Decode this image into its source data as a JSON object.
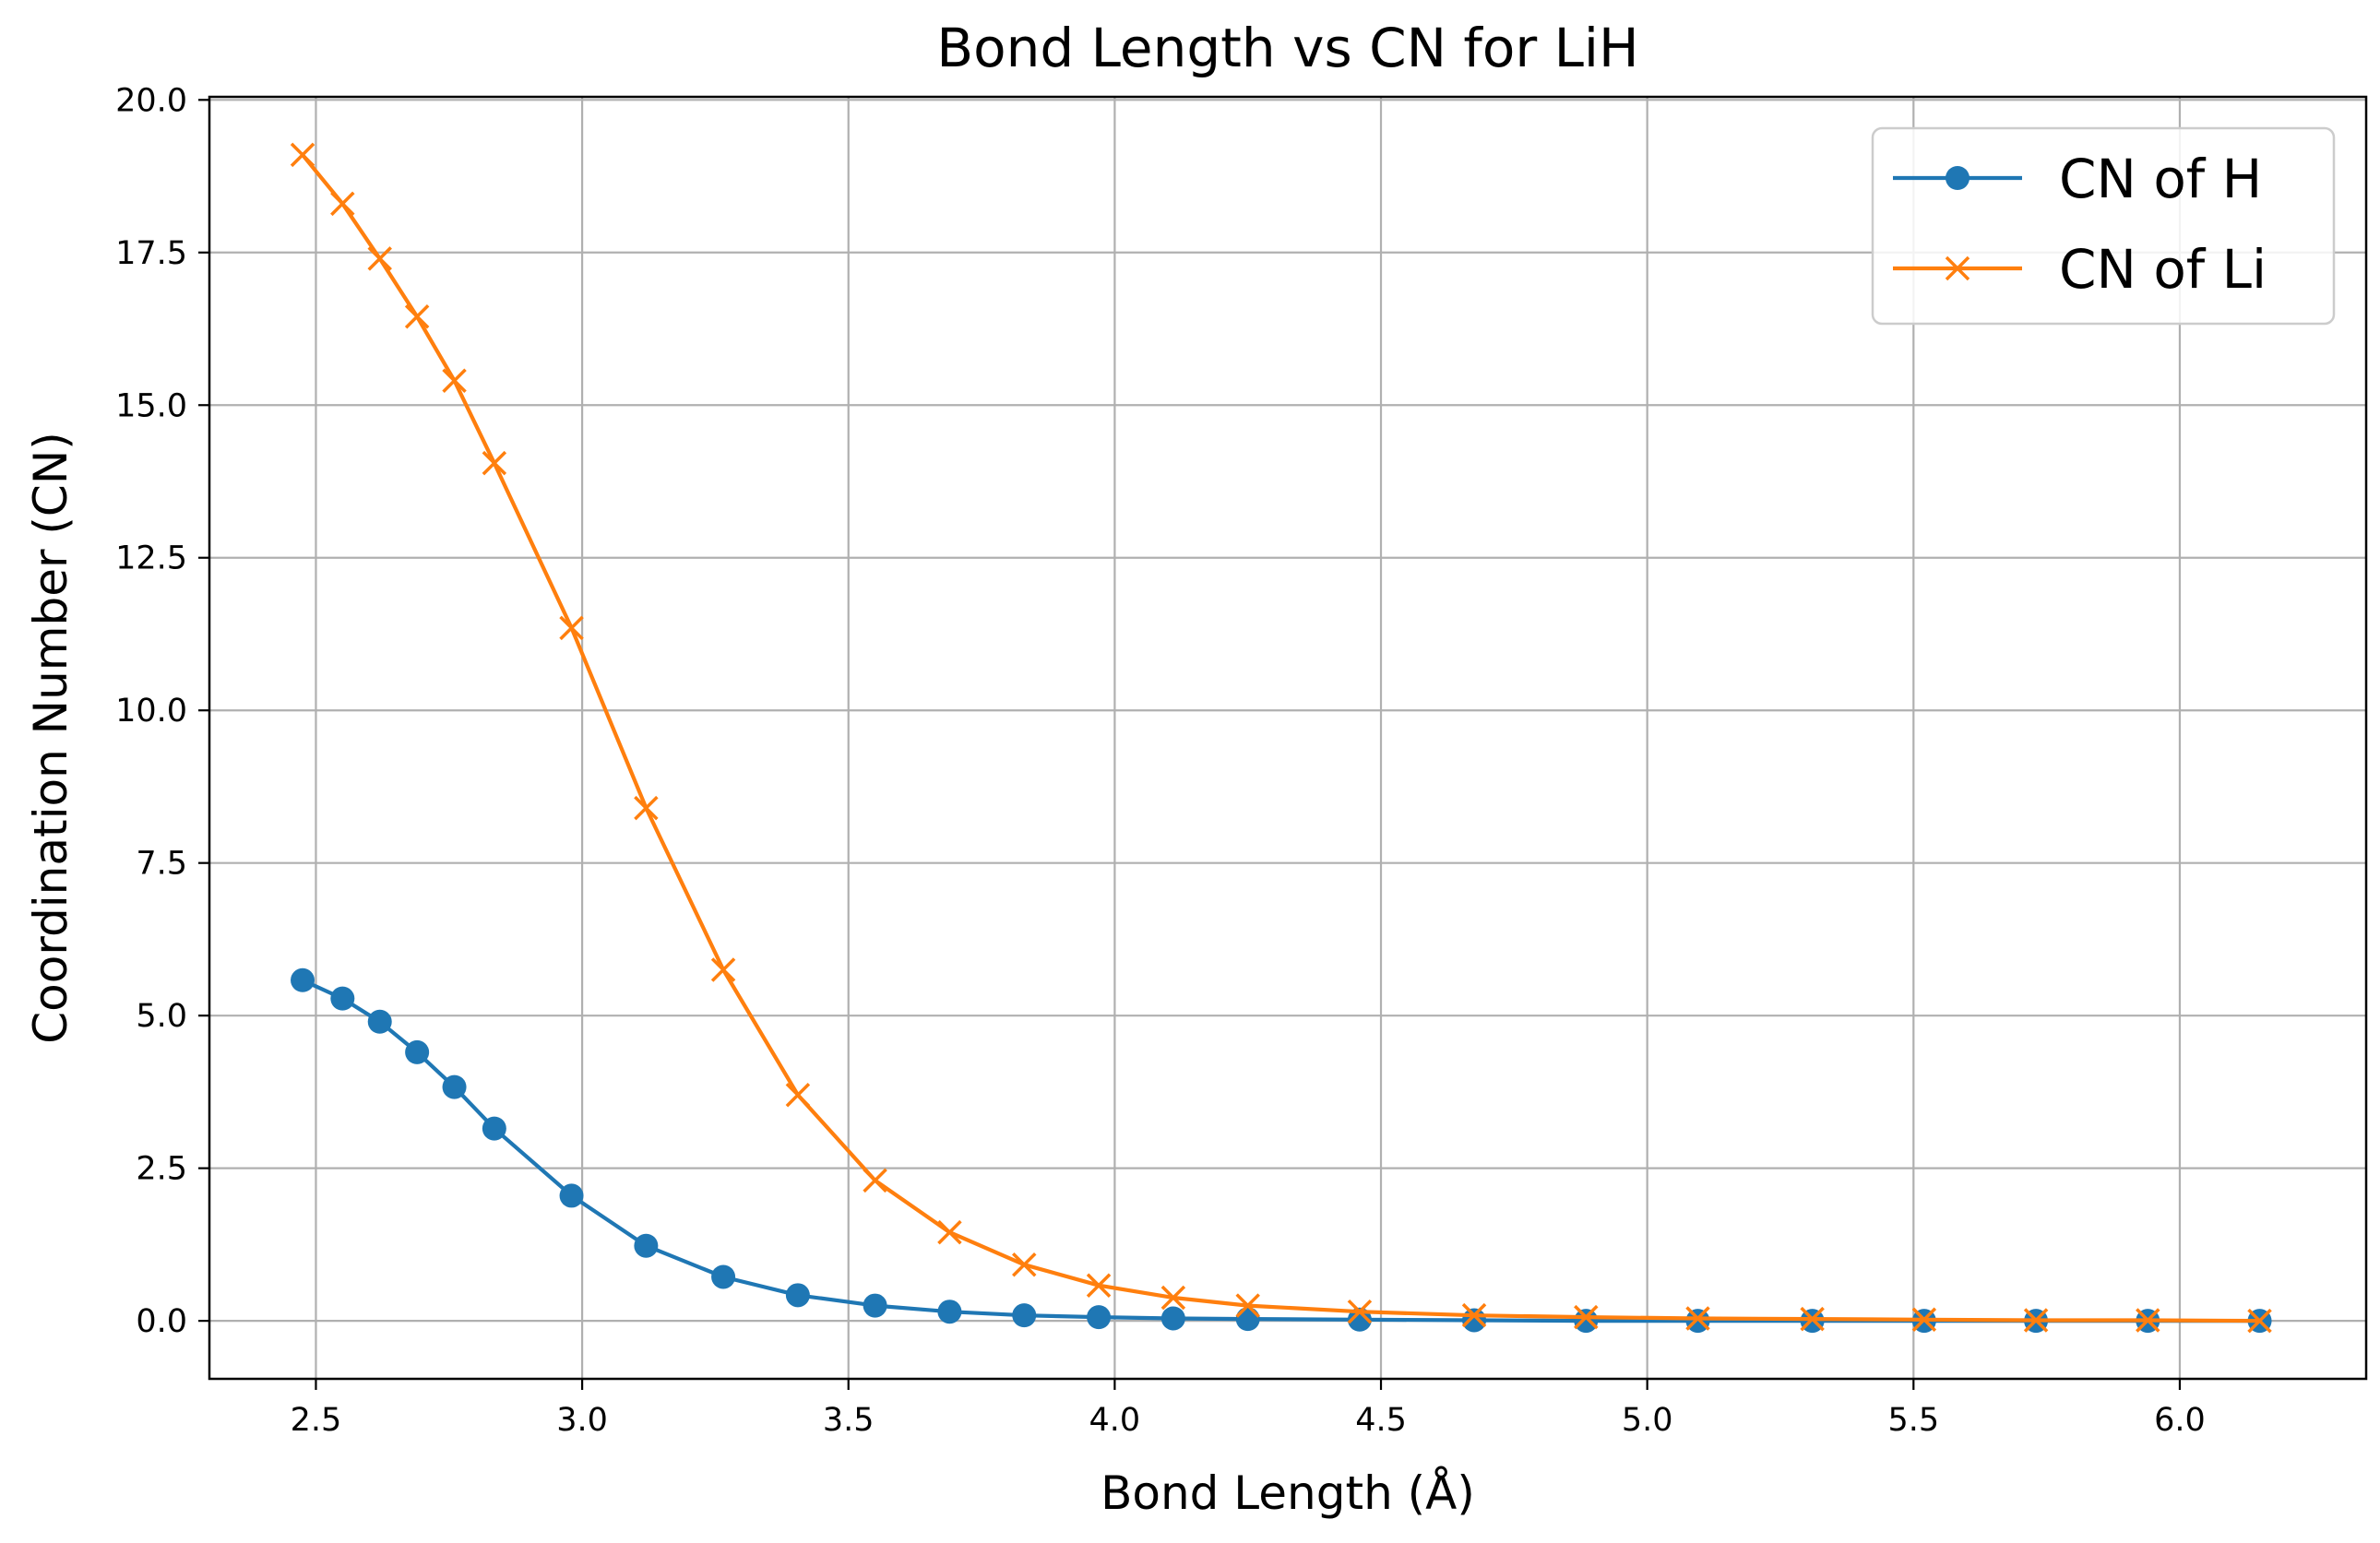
{
  "chart_data": {
    "type": "line",
    "title": "Bond Length vs CN for LiH",
    "xlabel": "Bond Length (Å)",
    "ylabel": "Coordination Number (CN)",
    "xlim": [
      2.3,
      6.35
    ],
    "ylim": [
      -0.95,
      20.05
    ],
    "xticks": [
      "2.5",
      "3.0",
      "3.5",
      "4.0",
      "4.5",
      "5.0",
      "5.5",
      "6.0"
    ],
    "yticks": [
      "0.0",
      "2.5",
      "5.0",
      "7.5",
      "10.0",
      "12.5",
      "15.0",
      "17.5",
      "20.0"
    ],
    "grid": true,
    "legend_position": "top-right",
    "x": [
      2.475,
      2.55,
      2.62,
      2.69,
      2.76,
      2.835,
      2.98,
      3.12,
      3.265,
      3.405,
      3.55,
      3.69,
      3.83,
      3.97,
      4.11,
      4.25,
      4.46,
      4.675,
      4.885,
      5.095,
      5.31,
      5.52,
      5.73,
      5.94,
      6.15
    ],
    "series": [
      {
        "name": "CN of H",
        "color": "#1f77b4",
        "marker": "circle",
        "values": [
          5.58,
          5.28,
          4.9,
          4.4,
          3.83,
          3.15,
          2.05,
          1.23,
          0.72,
          0.42,
          0.25,
          0.15,
          0.09,
          0.06,
          0.04,
          0.03,
          0.02,
          0.01,
          0.0,
          0.0,
          0.0,
          0.0,
          0.0,
          0.0,
          0.0
        ]
      },
      {
        "name": "CN of Li",
        "color": "#ff7f0e",
        "marker": "x",
        "values": [
          19.1,
          18.3,
          17.4,
          16.45,
          15.4,
          14.05,
          11.35,
          8.4,
          5.75,
          3.7,
          2.3,
          1.45,
          0.92,
          0.58,
          0.38,
          0.25,
          0.15,
          0.09,
          0.06,
          0.04,
          0.03,
          0.02,
          0.01,
          0.01,
          0.0
        ]
      }
    ]
  }
}
